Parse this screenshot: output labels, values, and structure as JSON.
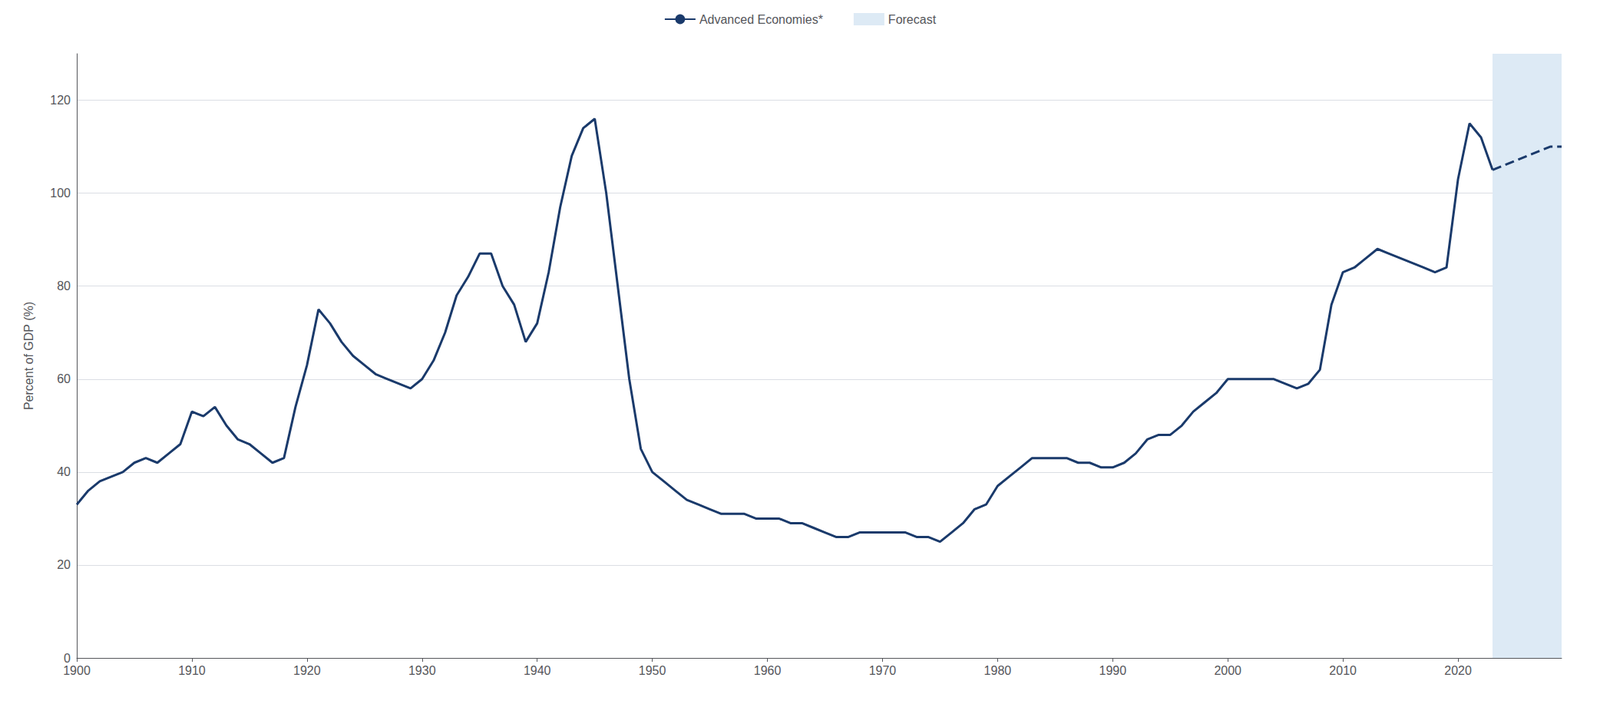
{
  "chart_data": {
    "type": "line",
    "ylabel": "Percent of GDP (%)",
    "xlim": [
      1900,
      2029
    ],
    "ylim": [
      0,
      130
    ],
    "xticks": [
      1900,
      1910,
      1920,
      1930,
      1940,
      1950,
      1960,
      1970,
      1980,
      1990,
      2000,
      2010,
      2020
    ],
    "yticks": [
      0,
      20,
      40,
      60,
      80,
      100,
      120
    ],
    "grid": true,
    "legend": "top",
    "series": [
      {
        "name": "Advanced Economies*",
        "color": "#1a3a6b",
        "line_style": "solid",
        "x": [
          1900,
          1901,
          1902,
          1903,
          1904,
          1905,
          1906,
          1907,
          1908,
          1909,
          1910,
          1911,
          1912,
          1913,
          1914,
          1915,
          1916,
          1917,
          1918,
          1919,
          1920,
          1921,
          1922,
          1923,
          1924,
          1925,
          1926,
          1927,
          1928,
          1929,
          1930,
          1931,
          1932,
          1933,
          1934,
          1935,
          1936,
          1937,
          1938,
          1939,
          1940,
          1941,
          1942,
          1943,
          1944,
          1945,
          1946,
          1947,
          1948,
          1949,
          1950,
          1951,
          1952,
          1953,
          1954,
          1955,
          1956,
          1957,
          1958,
          1959,
          1960,
          1961,
          1962,
          1963,
          1964,
          1965,
          1966,
          1967,
          1968,
          1969,
          1970,
          1971,
          1972,
          1973,
          1974,
          1975,
          1976,
          1977,
          1978,
          1979,
          1980,
          1981,
          1982,
          1983,
          1984,
          1985,
          1986,
          1987,
          1988,
          1989,
          1990,
          1991,
          1992,
          1993,
          1994,
          1995,
          1996,
          1997,
          1998,
          1999,
          2000,
          2001,
          2002,
          2003,
          2004,
          2005,
          2006,
          2007,
          2008,
          2009,
          2010,
          2011,
          2012,
          2013,
          2014,
          2015,
          2016,
          2017,
          2018,
          2019,
          2020,
          2021,
          2022,
          2023
        ],
        "values": [
          33,
          36,
          38,
          39,
          40,
          42,
          43,
          42,
          44,
          46,
          53,
          52,
          54,
          50,
          47,
          46,
          44,
          42,
          43,
          54,
          63,
          75,
          72,
          68,
          65,
          63,
          61,
          60,
          59,
          58,
          60,
          64,
          70,
          78,
          82,
          87,
          87,
          80,
          76,
          68,
          72,
          83,
          97,
          108,
          114,
          116,
          100,
          80,
          60,
          45,
          40,
          38,
          36,
          34,
          33,
          32,
          31,
          31,
          31,
          30,
          30,
          30,
          29,
          29,
          28,
          27,
          26,
          26,
          27,
          27,
          27,
          27,
          27,
          26,
          26,
          25,
          27,
          29,
          32,
          33,
          37,
          39,
          41,
          43,
          43,
          43,
          43,
          42,
          42,
          41,
          41,
          42,
          44,
          47,
          48,
          48,
          50,
          53,
          55,
          57,
          60,
          60,
          60,
          60,
          60,
          59,
          58,
          59,
          62,
          76,
          83,
          84,
          86,
          88,
          87,
          86,
          85,
          84,
          83,
          84,
          103,
          115,
          112,
          105
        ]
      },
      {
        "color": "#1a3a6b",
        "line_style": "dashed",
        "x": [
          2023,
          2024,
          2025,
          2026,
          2027,
          2028,
          2029
        ],
        "values": [
          105,
          106,
          107,
          108,
          109,
          110,
          110
        ]
      }
    ],
    "forecast": {
      "name": "Forecast",
      "start": 2023,
      "end": 2029,
      "color": "#ddeaf5"
    }
  }
}
